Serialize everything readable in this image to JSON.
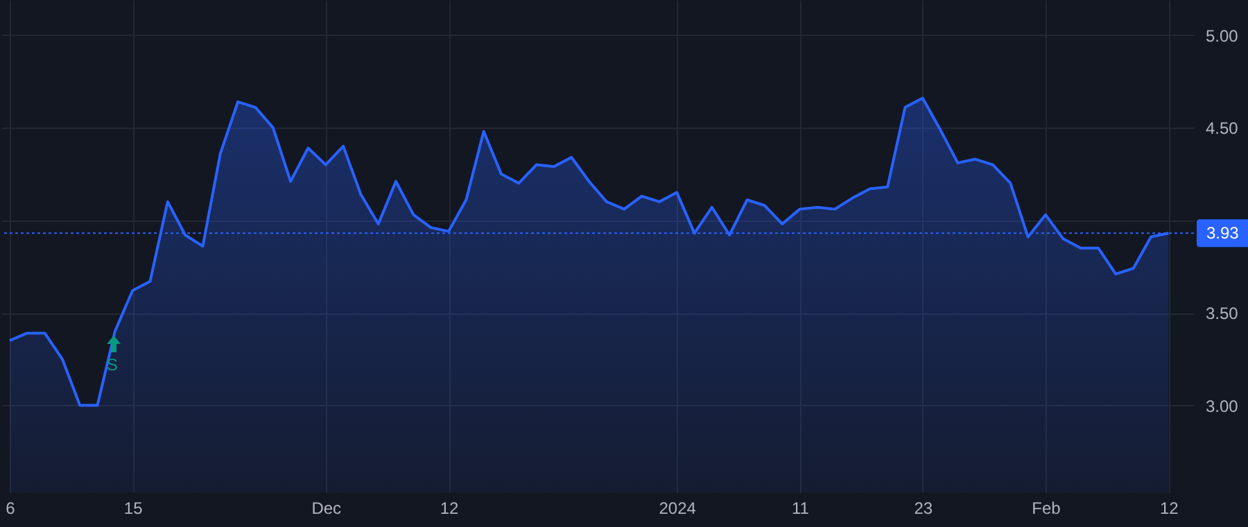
{
  "chart_data": {
    "type": "area",
    "categories": [
      "6",
      null,
      null,
      null,
      null,
      null,
      null,
      "15",
      null,
      null,
      null,
      null,
      null,
      null,
      null,
      null,
      null,
      null,
      "Dec",
      null,
      null,
      null,
      null,
      null,
      null,
      "12",
      null,
      null,
      null,
      null,
      null,
      null,
      null,
      null,
      null,
      null,
      null,
      null,
      "2024",
      null,
      null,
      null,
      null,
      null,
      null,
      "11",
      null,
      null,
      null,
      null,
      null,
      null,
      "23",
      null,
      null,
      null,
      null,
      null,
      null,
      "Feb",
      null,
      null,
      null,
      null,
      null,
      null,
      "12"
    ],
    "series": [
      {
        "color": "#2962ff",
        "values": [
          3.35,
          3.39,
          3.39,
          3.25,
          3.0,
          3.0,
          3.4,
          3.62,
          3.67,
          4.1,
          3.92,
          3.86,
          4.36,
          4.64,
          4.61,
          4.5,
          4.21,
          4.39,
          4.3,
          4.4,
          4.14,
          3.98,
          4.21,
          4.03,
          3.96,
          3.94,
          4.11,
          4.48,
          4.25,
          4.2,
          4.3,
          4.29,
          4.34,
          4.21,
          4.1,
          4.06,
          4.13,
          4.1,
          4.15,
          3.93,
          4.07,
          3.92,
          4.11,
          4.08,
          3.98,
          4.06,
          4.07,
          4.06,
          4.12,
          4.17,
          4.18,
          4.61,
          4.66,
          4.49,
          4.31,
          4.33,
          4.3,
          4.2,
          3.91,
          4.03,
          3.9,
          3.85,
          3.85,
          3.71,
          3.74,
          3.91,
          3.93
        ]
      }
    ],
    "ylim": [
      2.53,
      5.19
    ],
    "yticks": [
      {
        "value": 3,
        "label": "3.00"
      },
      {
        "value": 3.5,
        "label": "3.50"
      },
      {
        "value": 4,
        "label": null
      },
      {
        "value": 4.5,
        "label": "4.50"
      },
      {
        "value": 5,
        "label": "5.00"
      }
    ],
    "grid": true,
    "ref_lines": [
      {
        "axis": "y",
        "value": 3.93,
        "label": "3.93",
        "color": "#2962ff",
        "line_style": "dotted"
      }
    ],
    "annotations": [
      "S"
    ]
  }
}
